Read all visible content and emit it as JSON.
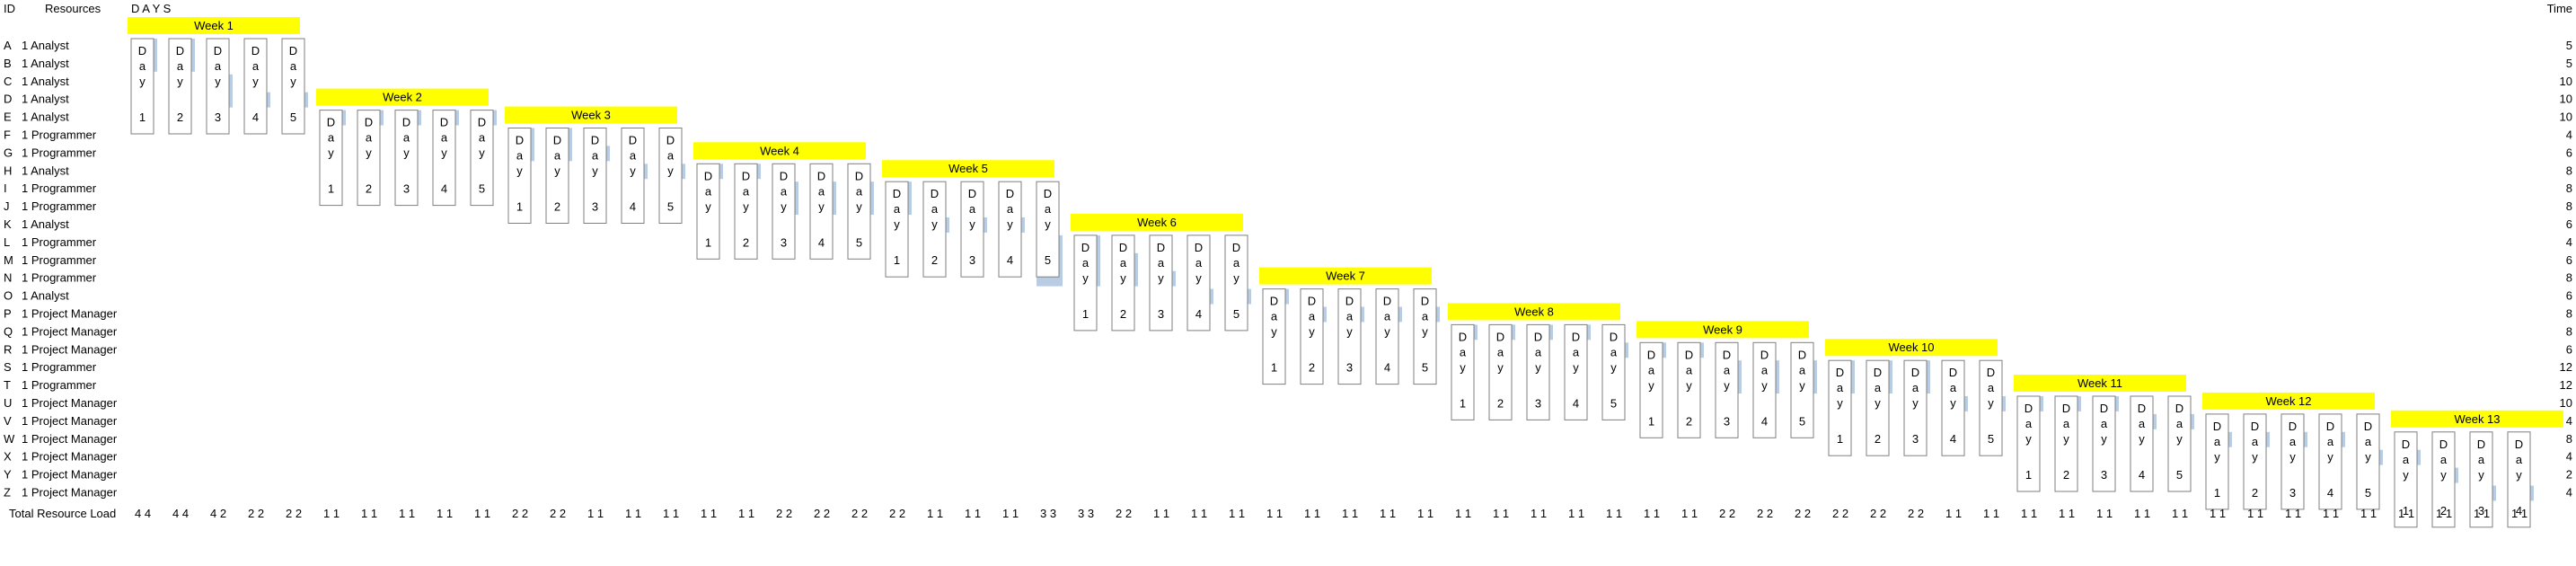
{
  "headers": {
    "id": "ID",
    "resources": "Resources",
    "days": "D A Y S",
    "time": "Time"
  },
  "total_label": "Total Resource Load",
  "day_words": [
    "D",
    "a",
    "y"
  ],
  "colors": {
    "bar": "#b8cce4",
    "week_fill": "#ffff00",
    "day_box": "#7f7f7f"
  },
  "chart_data": {
    "type": "gantt",
    "title": "",
    "tasks": [
      {
        "id": "A",
        "resource": "1 Analyst",
        "time": 5
      },
      {
        "id": "B",
        "resource": "1 Analyst",
        "time": 5
      },
      {
        "id": "C",
        "resource": "1 Analyst",
        "time": 10
      },
      {
        "id": "D",
        "resource": "1 Analyst",
        "time": 10
      },
      {
        "id": "E",
        "resource": "1 Analyst",
        "time": 10
      },
      {
        "id": "F",
        "resource": "1 Programmer",
        "time": 4
      },
      {
        "id": "G",
        "resource": "1 Programmer",
        "time": 6
      },
      {
        "id": "H",
        "resource": "1 Analyst",
        "time": 8
      },
      {
        "id": "I",
        "resource": "1 Programmer",
        "time": 8
      },
      {
        "id": "J",
        "resource": "1 Programmer",
        "time": 8
      },
      {
        "id": "K",
        "resource": "1 Analyst",
        "time": 6
      },
      {
        "id": "L",
        "resource": "1 Programmer",
        "time": 4
      },
      {
        "id": "M",
        "resource": "1 Programmer",
        "time": 6
      },
      {
        "id": "N",
        "resource": "1 Programmer",
        "time": 8
      },
      {
        "id": "O",
        "resource": "1 Analyst",
        "time": 6
      },
      {
        "id": "P",
        "resource": "1 Project Manager",
        "time": 8
      },
      {
        "id": "Q",
        "resource": "1 Project Manager",
        "time": 8
      },
      {
        "id": "R",
        "resource": "1 Project Manager",
        "time": 6
      },
      {
        "id": "S",
        "resource": "1 Programmer",
        "time": 12
      },
      {
        "id": "T",
        "resource": "1 Programmer",
        "time": 12
      },
      {
        "id": "U",
        "resource": "1 Project Manager",
        "time": 10
      },
      {
        "id": "V",
        "resource": "1 Project Manager",
        "time": 4
      },
      {
        "id": "W",
        "resource": "1 Project Manager",
        "time": 8
      },
      {
        "id": "X",
        "resource": "1 Project Manager",
        "time": 4
      },
      {
        "id": "Y",
        "resource": "1 Project Manager",
        "time": 2
      },
      {
        "id": "Z",
        "resource": "1 Project Manager",
        "time": 4
      }
    ],
    "weeks": [
      "Week 1",
      "Week 2",
      "Week 3",
      "Week 4",
      "Week 5",
      "Week 6",
      "Week 7",
      "Week 8",
      "Week 9",
      "Week 10",
      "Week 11",
      "Week 12",
      "Week 13"
    ],
    "day_numbers": [
      "1",
      "2",
      "3",
      "4",
      "5"
    ],
    "week_rows": [
      0,
      4,
      5,
      7,
      8,
      11,
      14,
      16,
      17,
      18,
      20,
      21,
      22
    ],
    "bars": [
      [
        0,
        0,
        0,
        1
      ],
      [
        0,
        1,
        0,
        1
      ],
      [
        0,
        2,
        2,
        3
      ],
      [
        0,
        3,
        3,
        3
      ],
      [
        0,
        4,
        3,
        3
      ],
      [
        1,
        0,
        4,
        4
      ],
      [
        1,
        1,
        4,
        4
      ],
      [
        1,
        2,
        4,
        4
      ],
      [
        1,
        3,
        4,
        4
      ],
      [
        1,
        4,
        4,
        4
      ],
      [
        2,
        0,
        5,
        6
      ],
      [
        2,
        1,
        5,
        6
      ],
      [
        2,
        2,
        6,
        6
      ],
      [
        2,
        3,
        7,
        7
      ],
      [
        2,
        4,
        7,
        7
      ],
      [
        3,
        0,
        7,
        7
      ],
      [
        3,
        1,
        7,
        7
      ],
      [
        3,
        2,
        8,
        9
      ],
      [
        3,
        3,
        8,
        9
      ],
      [
        3,
        4,
        8,
        9
      ],
      [
        4,
        0,
        8,
        9
      ],
      [
        4,
        1,
        10,
        10
      ],
      [
        4,
        2,
        10,
        10
      ],
      [
        4,
        3,
        10,
        10
      ],
      [
        4,
        4,
        11,
        13
      ],
      [
        5,
        0,
        11,
        13
      ],
      [
        5,
        1,
        12,
        13
      ],
      [
        5,
        2,
        13,
        13
      ],
      [
        5,
        3,
        14,
        14
      ],
      [
        5,
        4,
        14,
        14
      ],
      [
        6,
        0,
        14,
        14
      ],
      [
        6,
        1,
        15,
        15
      ],
      [
        6,
        2,
        15,
        15
      ],
      [
        6,
        3,
        15,
        15
      ],
      [
        6,
        4,
        15,
        15
      ],
      [
        7,
        0,
        16,
        16
      ],
      [
        7,
        1,
        16,
        16
      ],
      [
        7,
        2,
        16,
        16
      ],
      [
        7,
        3,
        16,
        16
      ],
      [
        7,
        4,
        17,
        17
      ],
      [
        8,
        0,
        17,
        17
      ],
      [
        8,
        1,
        17,
        17
      ],
      [
        8,
        2,
        18,
        19
      ],
      [
        8,
        3,
        18,
        19
      ],
      [
        8,
        4,
        18,
        19
      ],
      [
        9,
        0,
        18,
        19
      ],
      [
        9,
        1,
        18,
        19
      ],
      [
        9,
        2,
        18,
        19
      ],
      [
        9,
        3,
        20,
        20
      ],
      [
        9,
        4,
        20,
        20
      ],
      [
        10,
        0,
        20,
        20
      ],
      [
        10,
        1,
        20,
        20
      ],
      [
        10,
        2,
        20,
        20
      ],
      [
        10,
        3,
        21,
        21
      ],
      [
        10,
        4,
        21,
        21
      ],
      [
        11,
        0,
        22,
        22
      ],
      [
        11,
        1,
        22,
        22
      ],
      [
        11,
        2,
        22,
        22
      ],
      [
        11,
        3,
        22,
        22
      ],
      [
        11,
        4,
        23,
        23
      ],
      [
        12,
        0,
        23,
        23
      ],
      [
        12,
        1,
        24,
        24
      ],
      [
        12,
        2,
        25,
        25
      ],
      [
        12,
        3,
        25,
        25
      ]
    ],
    "total_load": [
      [
        "4 4",
        "4 4",
        "4 2",
        "2 2",
        "2 2"
      ],
      [
        "1 1",
        "1 1",
        "1 1",
        "1 1",
        "1 1"
      ],
      [
        "2 2",
        "2 2",
        "1 1",
        "1 1",
        "1 1"
      ],
      [
        "1 1",
        "1 1",
        "2 2",
        "2 2",
        "2 2"
      ],
      [
        "2 2",
        "1 1",
        "1 1",
        "1 1",
        "3 3"
      ],
      [
        "3 3",
        "2 2",
        "1 1",
        "1 1",
        "1 1"
      ],
      [
        "1 1",
        "1 1",
        "1 1",
        "1 1",
        "1 1"
      ],
      [
        "1 1",
        "1 1",
        "1 1",
        "1 1",
        "1 1"
      ],
      [
        "1 1",
        "1 1",
        "2 2",
        "2 2",
        "2 2"
      ],
      [
        "2 2",
        "2 2",
        "2 2",
        "1 1",
        "1 1"
      ],
      [
        "1 1",
        "1 1",
        "1 1",
        "1 1",
        "1 1"
      ],
      [
        "1 1",
        "1 1",
        "1 1",
        "1 1",
        "1 1"
      ],
      [
        "1 1",
        "1 1",
        "1 1",
        "1 1"
      ]
    ]
  }
}
